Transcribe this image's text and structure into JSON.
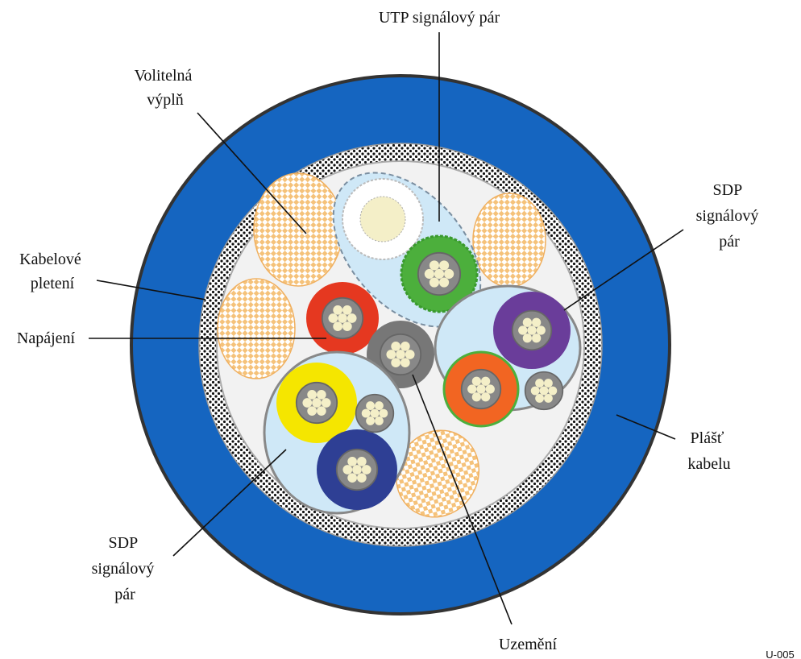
{
  "title": "UTP signálový pár",
  "labels": [
    {
      "lines": [
        "Volitelná",
        "výplň"
      ]
    },
    {
      "lines": [
        "SDP",
        "signálový",
        "pár"
      ]
    },
    {
      "lines": [
        "Kabelové",
        "pletení"
      ]
    },
    {
      "lines": [
        "Napájení"
      ]
    },
    {
      "lines": [
        "Plášť",
        "kabelu"
      ]
    },
    {
      "lines": [
        "SDP",
        "signálový",
        "pár"
      ]
    },
    {
      "lines": [
        "Uzemění"
      ]
    }
  ],
  "code": "U-005"
}
